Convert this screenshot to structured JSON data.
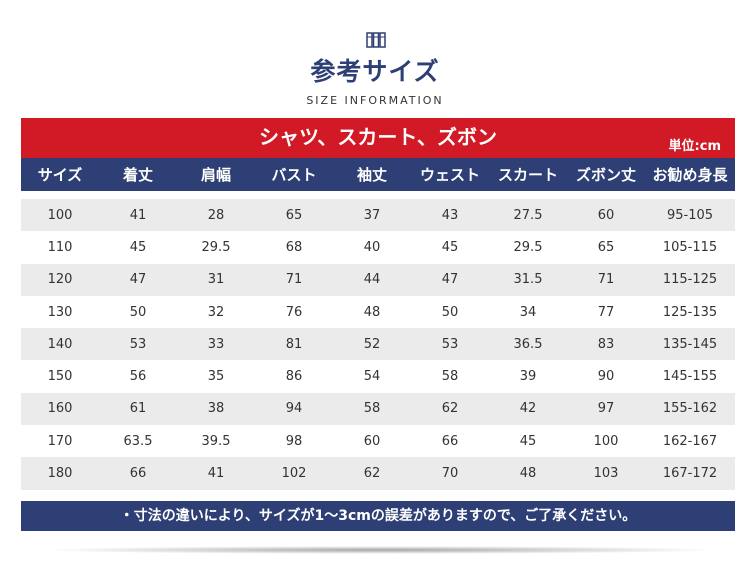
{
  "header": {
    "title": "参考サイズ",
    "subtitle": "SIZE INFORMATION",
    "icon": "ruler-book-icon"
  },
  "banner": {
    "title": "シャツ、スカート、ズボン",
    "unit": "単位:cm"
  },
  "table": {
    "columns": [
      "サイズ",
      "着丈",
      "肩幅",
      "バスト",
      "袖丈",
      "ウェスト",
      "スカート",
      "ズボン丈",
      "お勧め身長"
    ],
    "rows": [
      [
        "100",
        "41",
        "28",
        "65",
        "37",
        "43",
        "27.5",
        "60",
        "95-105"
      ],
      [
        "110",
        "45",
        "29.5",
        "68",
        "40",
        "45",
        "29.5",
        "65",
        "105-115"
      ],
      [
        "120",
        "47",
        "31",
        "71",
        "44",
        "47",
        "31.5",
        "71",
        "115-125"
      ],
      [
        "130",
        "50",
        "32",
        "76",
        "48",
        "50",
        "34",
        "77",
        "125-135"
      ],
      [
        "140",
        "53",
        "33",
        "81",
        "52",
        "53",
        "36.5",
        "83",
        "135-145"
      ],
      [
        "150",
        "56",
        "35",
        "86",
        "54",
        "58",
        "39",
        "90",
        "145-155"
      ],
      [
        "160",
        "61",
        "38",
        "94",
        "58",
        "62",
        "42",
        "97",
        "155-162"
      ],
      [
        "170",
        "63.5",
        "39.5",
        "98",
        "60",
        "66",
        "45",
        "100",
        "162-167"
      ],
      [
        "180",
        "66",
        "41",
        "102",
        "62",
        "70",
        "48",
        "103",
        "167-172"
      ]
    ]
  },
  "note": "・寸法の違いにより、サイズが1～3cmの誤差がありますので、ご了承ください。",
  "colors": {
    "red": "#d11a26",
    "navy": "#2d3f74",
    "row_shade": "#ebebeb"
  }
}
